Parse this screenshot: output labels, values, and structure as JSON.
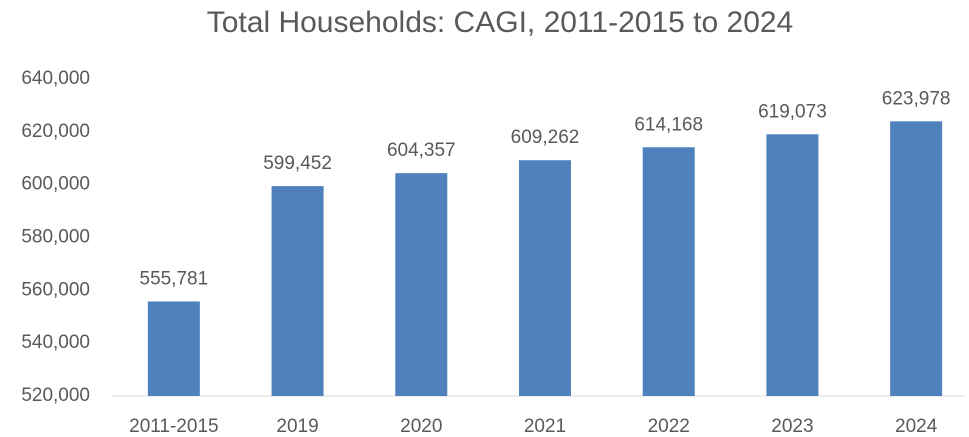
{
  "chart_data": {
    "type": "bar",
    "title": "Total Households:  CAGI, 2011-2015 to 2024",
    "categories": [
      "2011-2015",
      "2019",
      "2020",
      "2021",
      "2022",
      "2023",
      "2024"
    ],
    "values": [
      555781,
      599452,
      604357,
      609262,
      614168,
      619073,
      623978
    ],
    "value_labels": [
      "555,781",
      "599,452",
      "604,357",
      "609,262",
      "614,168",
      "619,073",
      "623,978"
    ],
    "color": "#4f81bd",
    "ylim": [
      520000,
      640000
    ],
    "yticks": [
      {
        "value": 520000,
        "label": "520,000"
      },
      {
        "value": 540000,
        "label": "540,000"
      },
      {
        "value": 560000,
        "label": "560,000"
      },
      {
        "value": 580000,
        "label": "580,000"
      },
      {
        "value": 600000,
        "label": "600,000"
      },
      {
        "value": 620000,
        "label": "620,000"
      },
      {
        "value": 640000,
        "label": "640,000"
      }
    ],
    "grid": false
  }
}
